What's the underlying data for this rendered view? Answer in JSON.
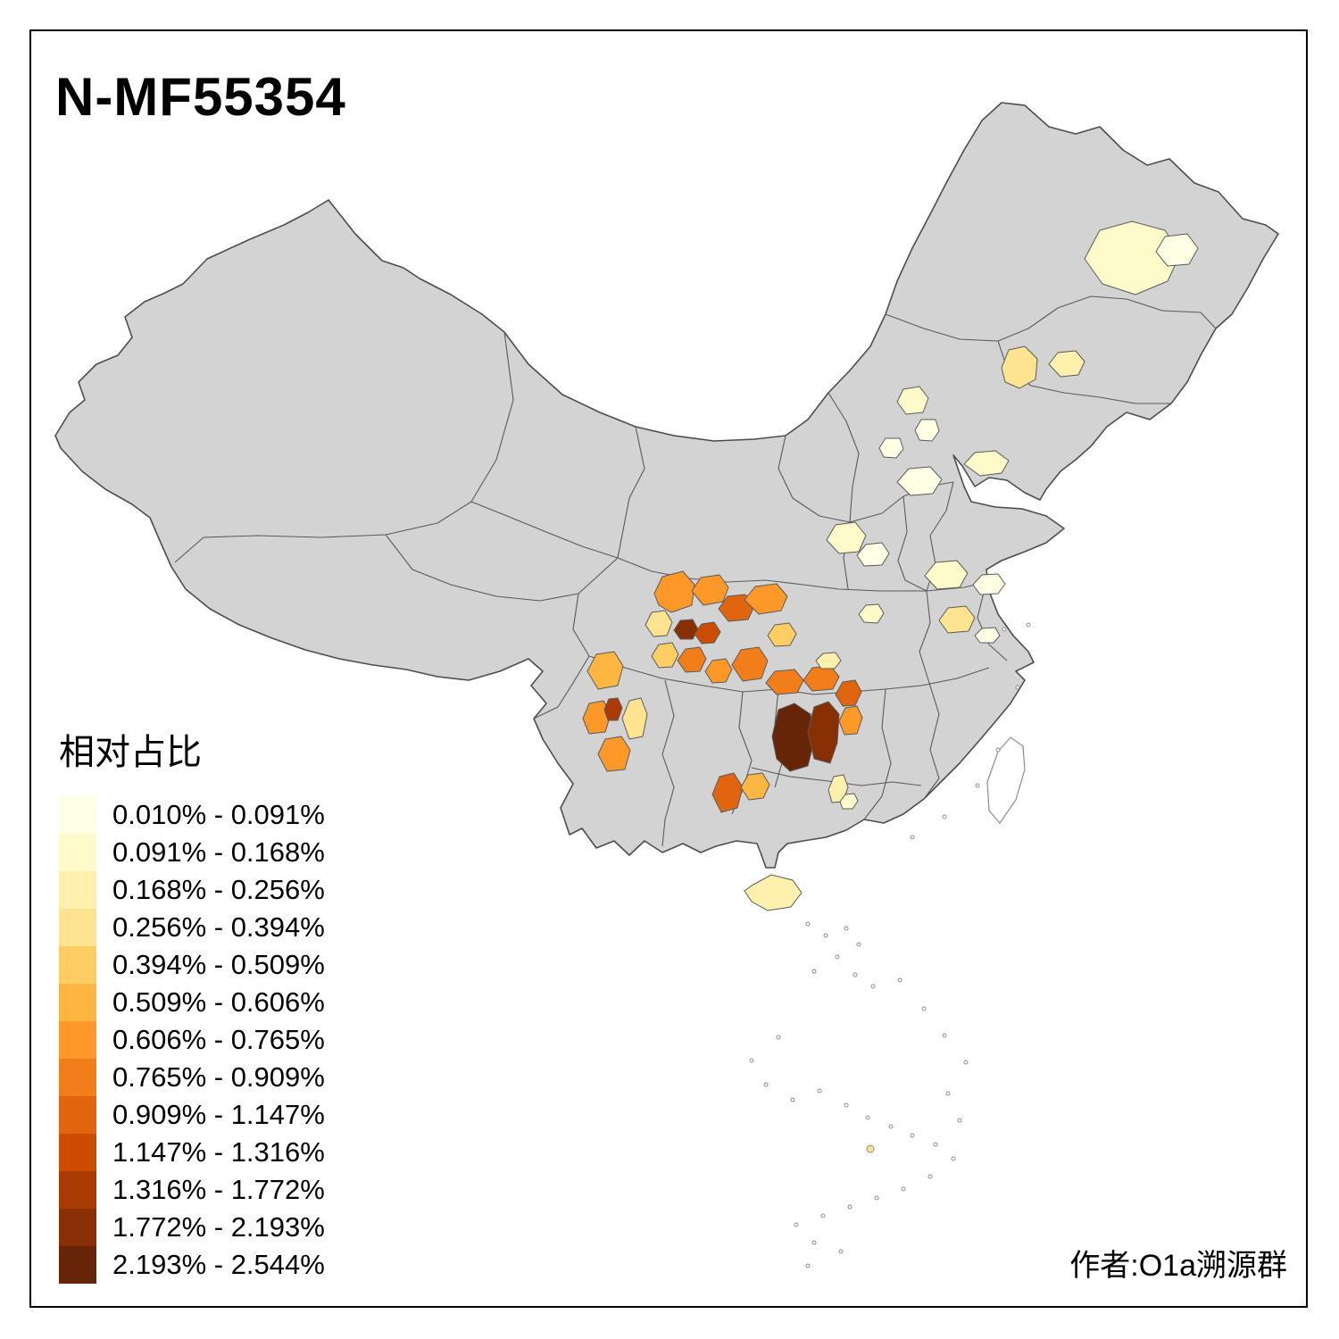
{
  "title": "N-MF55354",
  "legend": {
    "title": "相对占比",
    "items": [
      {
        "range": "0.010% - 0.091%",
        "color": "#FFFFE5"
      },
      {
        "range": "0.091% - 0.168%",
        "color": "#FFFACA"
      },
      {
        "range": "0.168% - 0.256%",
        "color": "#FFF0AE"
      },
      {
        "range": "0.256% - 0.394%",
        "color": "#FEE391"
      },
      {
        "range": "0.394% - 0.509%",
        "color": "#FECE65"
      },
      {
        "range": "0.509% - 0.606%",
        "color": "#FEB642"
      },
      {
        "range": "0.606% - 0.765%",
        "color": "#FE9929"
      },
      {
        "range": "0.765% - 0.909%",
        "color": "#F27E1B"
      },
      {
        "range": "0.909% - 1.147%",
        "color": "#E1640E"
      },
      {
        "range": "1.147% - 1.316%",
        "color": "#CC4C02"
      },
      {
        "range": "1.316% - 1.772%",
        "color": "#AA3C03"
      },
      {
        "range": "1.772% - 2.193%",
        "color": "#882F05"
      },
      {
        "range": "2.193% - 2.544%",
        "color": "#662506"
      }
    ]
  },
  "map": {
    "base_fill": "#D3D3D3",
    "outline_color": "#4D4D4D",
    "border_color": "#5A5A5A",
    "island_stroke": "#8C8C8C"
  },
  "credit": "作者:O1a溯源群"
}
